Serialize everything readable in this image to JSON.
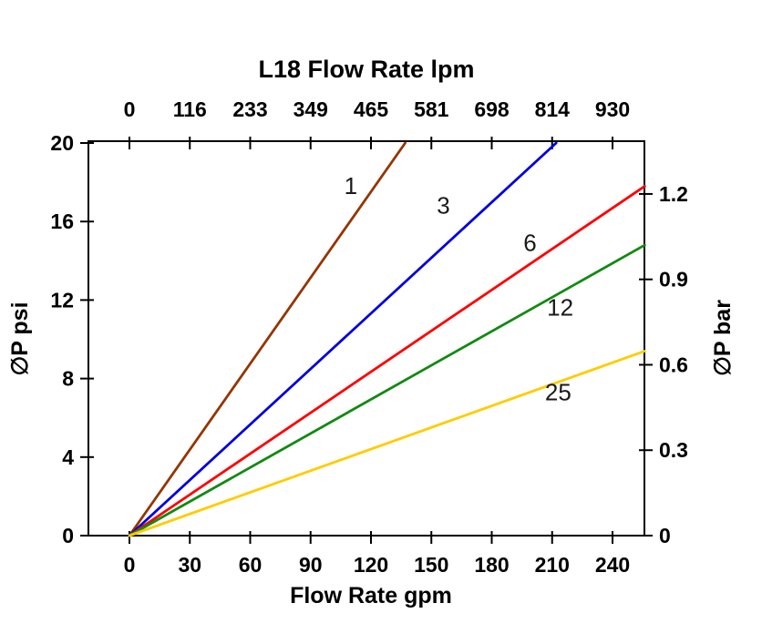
{
  "chart_data": {
    "type": "line",
    "title": "L18 Flow Rate lpm",
    "xlabel_bottom": "Flow Rate gpm",
    "ylabel_left": "∅P psi",
    "ylabel_right": "∅P bar",
    "xlim": [
      0,
      240
    ],
    "ylim": [
      0,
      20
    ],
    "grid": false,
    "legend": "inline-labels",
    "x_bottom_ticks": [
      0,
      30,
      60,
      90,
      120,
      150,
      180,
      210,
      240
    ],
    "x_top_ticks": [
      "0",
      "116",
      "233",
      "349",
      "465",
      "581",
      "698",
      "814",
      "930"
    ],
    "y_left_ticks": [
      0,
      4,
      8,
      12,
      16,
      20
    ],
    "y_right_ticks": [
      "0",
      "0.3",
      "0.6",
      "0.9",
      "1.2"
    ],
    "psi_per_bar": 14.5038,
    "series": [
      {
        "name": "1",
        "color": "#943500",
        "points": [
          [
            0,
            0
          ],
          [
            137,
            20
          ]
        ],
        "label": [
          110,
          17.4
        ]
      },
      {
        "name": "3",
        "color": "#0000E0",
        "points": [
          [
            0,
            0
          ],
          [
            212,
            20
          ]
        ],
        "label": [
          156,
          16.4
        ]
      },
      {
        "name": "6",
        "color": "#FF0000",
        "points": [
          [
            0,
            0
          ],
          [
            256,
            17.8
          ]
        ],
        "label": [
          199,
          14.5
        ]
      },
      {
        "name": "12",
        "color": "#118A11",
        "points": [
          [
            0,
            0
          ],
          [
            256,
            14.8
          ]
        ],
        "label": [
          214,
          11.2
        ]
      },
      {
        "name": "25",
        "color": "#FFCC00",
        "points": [
          [
            0,
            0
          ],
          [
            256,
            9.4
          ]
        ],
        "label": [
          213,
          6.9
        ]
      }
    ]
  }
}
